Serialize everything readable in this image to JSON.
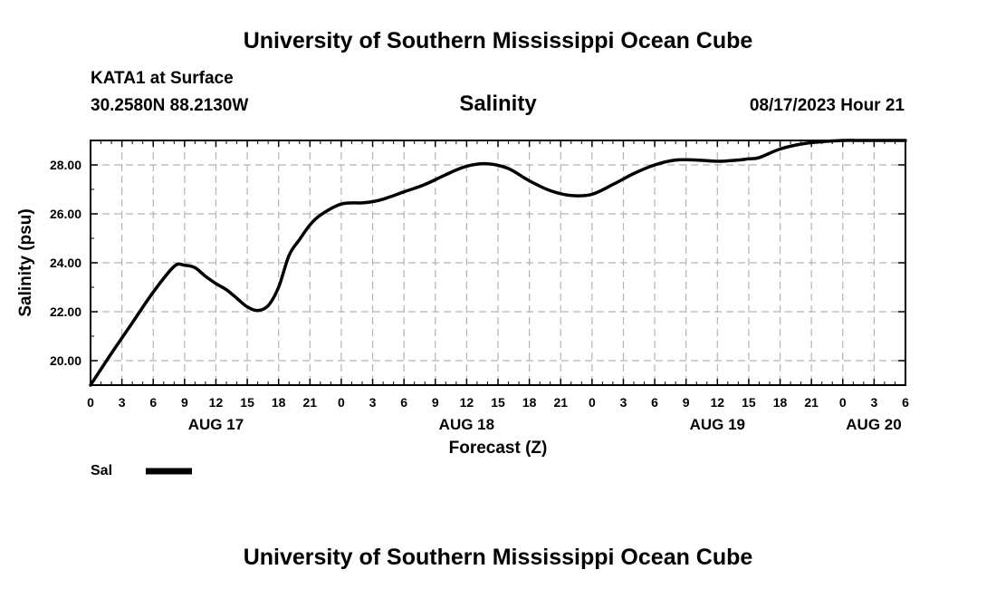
{
  "header": {
    "title_top": "University of Southern Mississippi Ocean Cube",
    "station": "KATA1 at Surface",
    "coords": "30.2580N  88.2130W",
    "plot_title": "Salinity",
    "timestamp": "08/17/2023 Hour 21",
    "title_bottom": "University of Southern Mississippi Ocean Cube"
  },
  "legend": {
    "label": "Sal"
  },
  "chart_data": {
    "type": "line",
    "title": "Salinity",
    "xlabel": "Forecast (Z)",
    "ylabel": "Salinity (psu)",
    "xlim": [
      0,
      78
    ],
    "ylim": [
      19.0,
      29.0
    ],
    "grid": true,
    "x_tick_labels": [
      "0",
      "3",
      "6",
      "9",
      "12",
      "15",
      "18",
      "21",
      "0",
      "3",
      "6",
      "9",
      "12",
      "15",
      "18",
      "21",
      "0",
      "3",
      "6",
      "9",
      "12",
      "15",
      "18",
      "21",
      "0",
      "3",
      "6"
    ],
    "y_ticks": [
      20,
      22,
      24,
      26,
      28
    ],
    "y_tick_labels": [
      "20.00",
      "22.00",
      "24.00",
      "26.00",
      "28.00"
    ],
    "day_labels": [
      {
        "label": "AUG 17",
        "hour": 12
      },
      {
        "label": "AUG 18",
        "hour": 36
      },
      {
        "label": "AUG 19",
        "hour": 60
      },
      {
        "label": "AUG 20",
        "hour": 78
      }
    ],
    "series": [
      {
        "name": "Sal",
        "color": "#000000",
        "x": [
          0,
          2,
          4,
          6,
          8,
          9,
          10,
          11,
          12,
          13,
          14,
          15,
          16,
          17,
          18,
          19,
          20,
          21,
          22,
          24,
          26,
          27,
          28,
          30,
          32,
          34,
          36,
          38,
          40,
          42,
          44,
          46,
          48,
          50,
          52,
          54,
          56,
          58,
          60,
          62,
          63,
          64,
          66,
          68,
          70,
          72,
          74,
          76,
          78
        ],
        "y": [
          19.0,
          20.3,
          21.55,
          22.8,
          23.85,
          23.9,
          23.8,
          23.45,
          23.15,
          22.9,
          22.55,
          22.2,
          22.05,
          22.25,
          23.0,
          24.3,
          24.95,
          25.55,
          25.95,
          26.4,
          26.45,
          26.5,
          26.6,
          26.9,
          27.2,
          27.6,
          27.95,
          28.05,
          27.85,
          27.35,
          26.95,
          26.75,
          26.8,
          27.2,
          27.65,
          28.0,
          28.2,
          28.2,
          28.15,
          28.2,
          28.25,
          28.3,
          28.65,
          28.85,
          28.95,
          29.0,
          29.0,
          29.0,
          29.0
        ]
      }
    ]
  }
}
